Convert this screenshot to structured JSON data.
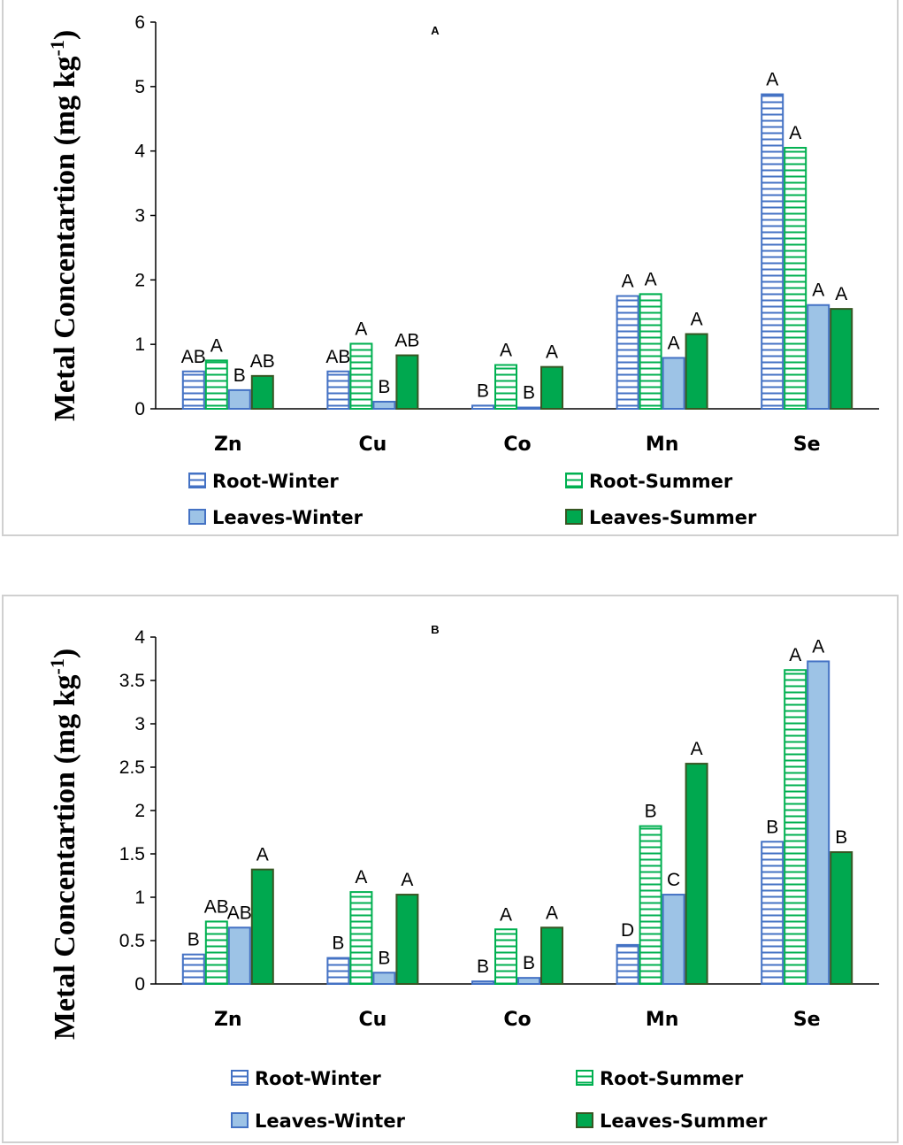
{
  "colors": {
    "root_winter": "#4472c4",
    "root_summer": "#00b050",
    "leaves_winter_fill": "#9dc3e6",
    "leaves_winter_stroke": "#4472c4",
    "leaves_summer_fill": "#00a84f",
    "leaves_summer_stroke": "#375623"
  },
  "chart_data": [
    {
      "type": "bar",
      "panel_label": "A",
      "ylabel_main": "Metal Concentartion (mg kg",
      "ylabel_sup": "-1",
      "ylabel_close": ")",
      "ylim": [
        0,
        6
      ],
      "yticks": [
        "0",
        "1",
        "2",
        "3",
        "4",
        "5",
        "6"
      ],
      "categories": [
        "Zn",
        "Cu",
        "Co",
        "Mn",
        "Se"
      ],
      "series": [
        {
          "name": "Root-Winter",
          "style": "hatch-blue",
          "values": [
            0.58,
            0.58,
            0.05,
            1.75,
            4.88
          ],
          "letters": [
            "AB",
            "AB",
            "B",
            "A",
            "A"
          ]
        },
        {
          "name": "Root-Summer",
          "style": "hatch-green",
          "values": [
            0.75,
            1.01,
            0.68,
            1.78,
            4.05
          ],
          "letters": [
            "A",
            "A",
            "A",
            "A",
            "A"
          ]
        },
        {
          "name": "Leaves-Winter",
          "style": "solid-lightblue",
          "values": [
            0.29,
            0.11,
            0.02,
            0.79,
            1.61
          ],
          "letters": [
            "B",
            "B",
            "B",
            "A",
            "A"
          ]
        },
        {
          "name": "Leaves-Summer",
          "style": "solid-green",
          "values": [
            0.51,
            0.83,
            0.65,
            1.16,
            1.55
          ],
          "letters": [
            "AB",
            "AB",
            "A",
            "A",
            "A"
          ]
        }
      ],
      "legend": [
        "Root-Winter",
        "Root-Summer",
        "Leaves-Winter",
        "Leaves-Summer"
      ]
    },
    {
      "type": "bar",
      "panel_label": "B",
      "ylabel_main": "Metal Concentartion (mg kg",
      "ylabel_sup": "-1",
      "ylabel_close": ")",
      "ylim": [
        0,
        4
      ],
      "yticks": [
        "0",
        "0.5",
        "1",
        "1.5",
        "2",
        "2.5",
        "3",
        "3.5",
        "4"
      ],
      "categories": [
        "Zn",
        "Cu",
        "Co",
        "Mn",
        "Se"
      ],
      "series": [
        {
          "name": "Root-Winter",
          "style": "hatch-blue",
          "values": [
            0.34,
            0.3,
            0.03,
            0.45,
            1.64
          ],
          "letters": [
            "B",
            "B",
            "B",
            "D",
            "B"
          ]
        },
        {
          "name": "Root-Summer",
          "style": "hatch-green",
          "values": [
            0.72,
            1.06,
            0.63,
            1.82,
            3.62
          ],
          "letters": [
            "AB",
            "A",
            "A",
            "B",
            "A"
          ]
        },
        {
          "name": "Leaves-Winter",
          "style": "solid-lightblue",
          "values": [
            0.65,
            0.13,
            0.07,
            1.03,
            3.72
          ],
          "letters": [
            "AB",
            "B",
            "B",
            "C",
            "A"
          ]
        },
        {
          "name": "Leaves-Summer",
          "style": "solid-green",
          "values": [
            1.32,
            1.03,
            0.65,
            2.54,
            1.52
          ],
          "letters": [
            "A",
            "A",
            "A",
            "A",
            "B"
          ]
        }
      ],
      "legend": [
        "Root-Winter",
        "Root-Summer",
        "Leaves-Winter",
        "Leaves-Summer"
      ]
    }
  ]
}
